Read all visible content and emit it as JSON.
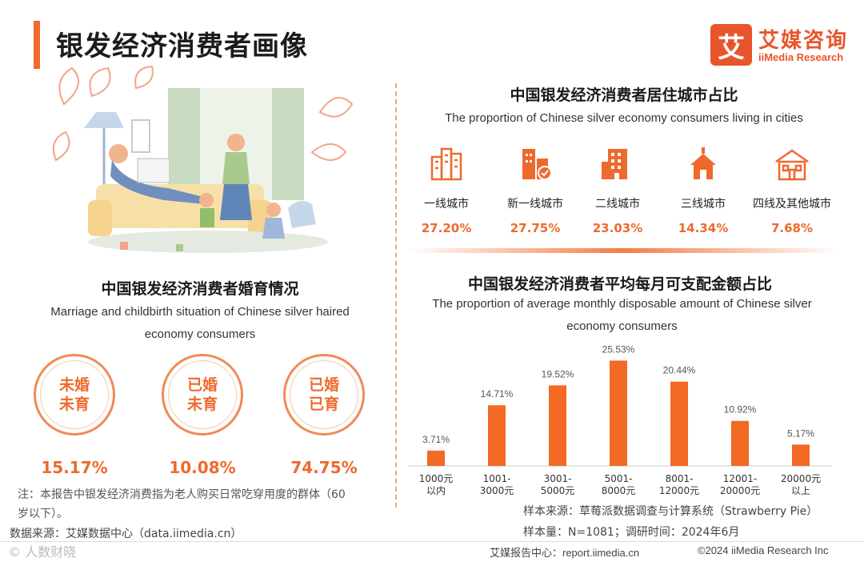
{
  "page": {
    "title": "银发经济消费者画像"
  },
  "logo": {
    "mark": "艾",
    "cn": "艾媒咨询",
    "en": "iiMedia Research"
  },
  "marriage": {
    "title": "中国银发经济消费者婚育情况",
    "subtitle_line1": "Marriage and childbirth situation of Chinese silver haired",
    "subtitle_line2": "economy consumers",
    "items": [
      {
        "line1": "未婚",
        "line2": "未育",
        "pct": "15.17%"
      },
      {
        "line1": "已婚",
        "line2": "未育",
        "pct": "10.08%"
      },
      {
        "line1": "已婚",
        "line2": "已育",
        "pct": "74.75%"
      }
    ]
  },
  "note": {
    "line1": "注：本报告中银发经济消费指为老人购买日常吃穿用度的群体（60",
    "line2": "岁以下）。"
  },
  "source_left": "数据来源：艾媒数据中心（data.iimedia.cn）",
  "watermark": "© 人数财晓",
  "cities": {
    "title": "中国银发经济消费者居住城市占比",
    "subtitle": "The proportion of Chinese silver economy consumers living in cities",
    "items": [
      {
        "label": "一线城市",
        "pct": "27.20%",
        "icon": "skyscrapers-icon"
      },
      {
        "label": "新一线城市",
        "pct": "27.75%",
        "icon": "city-buildings-icon"
      },
      {
        "label": "二线城市",
        "pct": "23.03%",
        "icon": "office-building-icon"
      },
      {
        "label": "三线城市",
        "pct": "14.34%",
        "icon": "town-house-icon"
      },
      {
        "label": "四线及其他城市",
        "pct": "7.68%",
        "icon": "low-house-icon"
      }
    ]
  },
  "disposable": {
    "title": "中国银发经济消费者平均每月可支配金额占比",
    "subtitle_line1": "The proportion of average monthly disposable amount of Chinese silver",
    "subtitle_line2": "economy consumers",
    "source_line1": "样本来源：草莓派数据调查与计算系统（Strawberry Pie）",
    "source_line2": "样本量：N=1081；调研时间：2024年6月"
  },
  "chart_data": {
    "type": "bar",
    "categories": [
      [
        "1000元",
        "以内"
      ],
      [
        "1001-",
        "3000元"
      ],
      [
        "3001-",
        "5000元"
      ],
      [
        "5001-",
        "8000元"
      ],
      [
        "8001-",
        "12000元"
      ],
      [
        "12001-",
        "20000元"
      ],
      [
        "20000元",
        "以上"
      ]
    ],
    "values": [
      3.71,
      14.71,
      19.52,
      25.53,
      20.44,
      10.92,
      5.17
    ],
    "value_labels": [
      "3.71%",
      "14.71%",
      "19.52%",
      "25.53%",
      "20.44%",
      "10.92%",
      "5.17%"
    ],
    "ylim": [
      0,
      26
    ],
    "grid": false,
    "bar_color": "#f26a24",
    "label_color": "#555555"
  },
  "footer": {
    "center": "艾媒报告中心：report.iimedia.cn",
    "copyright": "©2024  iiMedia Research Inc"
  }
}
